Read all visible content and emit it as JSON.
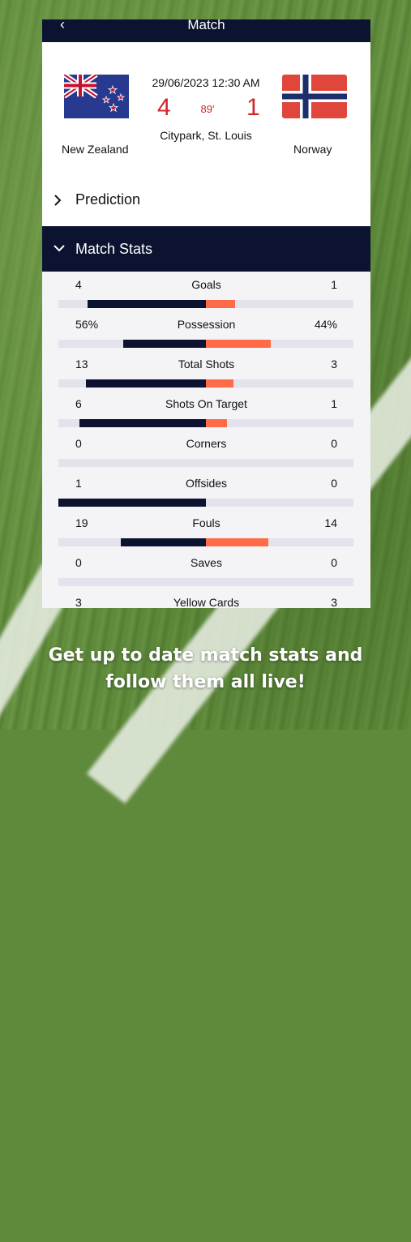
{
  "header": {
    "back_icon": "back-chevron-icon",
    "title": "Match"
  },
  "match": {
    "home_team": "New Zealand",
    "away_team": "Norway",
    "datetime": "29/06/2023 12:30 AM",
    "home_score": "4",
    "away_score": "1",
    "minute": "89'",
    "venue": "Citypark, St. Louis"
  },
  "sections": {
    "prediction": "Prediction",
    "match_stats": "Match Stats"
  },
  "colors": {
    "navy": "#0c1330",
    "accent": "#ff6b47",
    "score_red": "#d0262a"
  },
  "stats": [
    {
      "label": "Goals",
      "home": "4",
      "away": "1",
      "home_value": 4,
      "away_value": 1
    },
    {
      "label": "Possession",
      "home": "56%",
      "away": "44%",
      "home_value": 56,
      "away_value": 44
    },
    {
      "label": "Total Shots",
      "home": "13",
      "away": "3",
      "home_value": 13,
      "away_value": 3
    },
    {
      "label": "Shots On Target",
      "home": "6",
      "away": "1",
      "home_value": 6,
      "away_value": 1
    },
    {
      "label": "Corners",
      "home": "0",
      "away": "0",
      "home_value": 0,
      "away_value": 0
    },
    {
      "label": "Offsides",
      "home": "1",
      "away": "0",
      "home_value": 1,
      "away_value": 0
    },
    {
      "label": "Fouls",
      "home": "19",
      "away": "14",
      "home_value": 19,
      "away_value": 14
    },
    {
      "label": "Saves",
      "home": "0",
      "away": "0",
      "home_value": 0,
      "away_value": 0
    },
    {
      "label": "Yellow Cards",
      "home": "3",
      "away": "3",
      "home_value": 3,
      "away_value": 3
    }
  ],
  "caption": {
    "line1": "Get up to date match stats and",
    "line2": "follow them all live!"
  }
}
